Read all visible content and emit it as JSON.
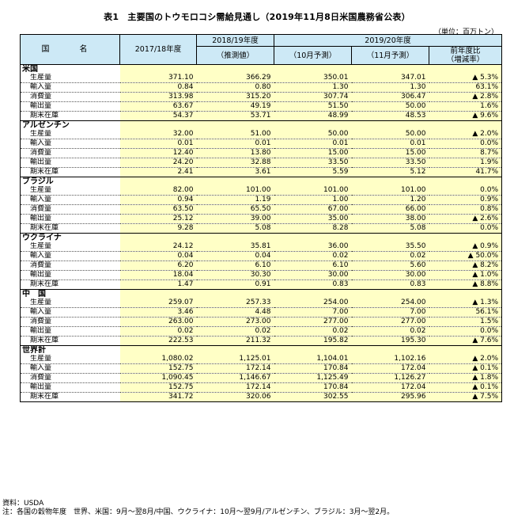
{
  "title": "表1　主要国のトウモロコシ需給見通し（2019年11月8日米国農務省公表）",
  "unit": "（単位：百万トン）",
  "header": {
    "country_col": "国　名",
    "col_2017": "2017/18年度",
    "group_2018": "2018/19年度",
    "group_2019": "2019/20年度",
    "estimate": "（推測値）",
    "oct_forecast": "（10月予測）",
    "nov_forecast": "（11月予測）",
    "yoy_line1": "前年度比",
    "yoy_line2": "（増減率）"
  },
  "groups": [
    {
      "name": "米国",
      "rows": [
        {
          "label": "生産量",
          "v2017": "371.10",
          "v2018": "366.29",
          "oct": "350.01",
          "nov": "347.01",
          "yoy": "▲ 5.3%"
        },
        {
          "label": "輸入量",
          "v2017": "0.84",
          "v2018": "0.80",
          "oct": "1.30",
          "nov": "1.30",
          "yoy": "63.1%"
        },
        {
          "label": "消費量",
          "v2017": "313.98",
          "v2018": "315.20",
          "oct": "307.74",
          "nov": "306.47",
          "yoy": "▲ 2.8%"
        },
        {
          "label": "輸出量",
          "v2017": "63.67",
          "v2018": "49.19",
          "oct": "51.50",
          "nov": "50.00",
          "yoy": "1.6%"
        },
        {
          "label": "期末在庫",
          "v2017": "54.37",
          "v2018": "53.71",
          "oct": "48.99",
          "nov": "48.53",
          "yoy": "▲ 9.6%"
        }
      ]
    },
    {
      "name": "アルゼンチン",
      "rows": [
        {
          "label": "生産量",
          "v2017": "32.00",
          "v2018": "51.00",
          "oct": "50.00",
          "nov": "50.00",
          "yoy": "▲ 2.0%"
        },
        {
          "label": "輸入量",
          "v2017": "0.01",
          "v2018": "0.01",
          "oct": "0.01",
          "nov": "0.01",
          "yoy": "0.0%"
        },
        {
          "label": "消費量",
          "v2017": "12.40",
          "v2018": "13.80",
          "oct": "15.00",
          "nov": "15.00",
          "yoy": "8.7%"
        },
        {
          "label": "輸出量",
          "v2017": "24.20",
          "v2018": "32.88",
          "oct": "33.50",
          "nov": "33.50",
          "yoy": "1.9%"
        },
        {
          "label": "期末在庫",
          "v2017": "2.41",
          "v2018": "3.61",
          "oct": "5.59",
          "nov": "5.12",
          "yoy": "41.7%"
        }
      ]
    },
    {
      "name": "ブラジル",
      "rows": [
        {
          "label": "生産量",
          "v2017": "82.00",
          "v2018": "101.00",
          "oct": "101.00",
          "nov": "101.00",
          "yoy": "0.0%"
        },
        {
          "label": "輸入量",
          "v2017": "0.94",
          "v2018": "1.19",
          "oct": "1.00",
          "nov": "1.20",
          "yoy": "0.9%"
        },
        {
          "label": "消費量",
          "v2017": "63.50",
          "v2018": "65.50",
          "oct": "67.00",
          "nov": "66.00",
          "yoy": "0.8%"
        },
        {
          "label": "輸出量",
          "v2017": "25.12",
          "v2018": "39.00",
          "oct": "35.00",
          "nov": "38.00",
          "yoy": "▲ 2.6%"
        },
        {
          "label": "期末在庫",
          "v2017": "9.28",
          "v2018": "5.08",
          "oct": "8.28",
          "nov": "5.08",
          "yoy": "0.0%"
        }
      ]
    },
    {
      "name": "ウクライナ",
      "rows": [
        {
          "label": "生産量",
          "v2017": "24.12",
          "v2018": "35.81",
          "oct": "36.00",
          "nov": "35.50",
          "yoy": "▲ 0.9%"
        },
        {
          "label": "輸入量",
          "v2017": "0.04",
          "v2018": "0.04",
          "oct": "0.02",
          "nov": "0.02",
          "yoy": "▲ 50.0%"
        },
        {
          "label": "消費量",
          "v2017": "6.20",
          "v2018": "6.10",
          "oct": "6.10",
          "nov": "5.60",
          "yoy": "▲ 8.2%"
        },
        {
          "label": "輸出量",
          "v2017": "18.04",
          "v2018": "30.30",
          "oct": "30.00",
          "nov": "30.00",
          "yoy": "▲ 1.0%"
        },
        {
          "label": "期末在庫",
          "v2017": "1.47",
          "v2018": "0.91",
          "oct": "0.83",
          "nov": "0.83",
          "yoy": "▲ 8.8%"
        }
      ]
    },
    {
      "name": "中　国",
      "rows": [
        {
          "label": "生産量",
          "v2017": "259.07",
          "v2018": "257.33",
          "oct": "254.00",
          "nov": "254.00",
          "yoy": "▲ 1.3%"
        },
        {
          "label": "輸入量",
          "v2017": "3.46",
          "v2018": "4.48",
          "oct": "7.00",
          "nov": "7.00",
          "yoy": "56.1%"
        },
        {
          "label": "消費量",
          "v2017": "263.00",
          "v2018": "273.00",
          "oct": "277.00",
          "nov": "277.00",
          "yoy": "1.5%"
        },
        {
          "label": "輸出量",
          "v2017": "0.02",
          "v2018": "0.02",
          "oct": "0.02",
          "nov": "0.02",
          "yoy": "0.0%"
        },
        {
          "label": "期末在庫",
          "v2017": "222.53",
          "v2018": "211.32",
          "oct": "195.82",
          "nov": "195.30",
          "yoy": "▲ 7.6%"
        }
      ]
    },
    {
      "name": "世界計",
      "rows": [
        {
          "label": "生産量",
          "v2017": "1,080.02",
          "v2018": "1,125.01",
          "oct": "1,104.01",
          "nov": "1,102.16",
          "yoy": "▲ 2.0%"
        },
        {
          "label": "輸入量",
          "v2017": "152.75",
          "v2018": "172.14",
          "oct": "170.84",
          "nov": "172.04",
          "yoy": "▲ 0.1%"
        },
        {
          "label": "消費量",
          "v2017": "1,090.45",
          "v2018": "1,146.67",
          "oct": "1,125.49",
          "nov": "1,126.27",
          "yoy": "▲ 1.8%"
        },
        {
          "label": "輸出量",
          "v2017": "152.75",
          "v2018": "172.14",
          "oct": "170.84",
          "nov": "172.04",
          "yoy": "▲ 0.1%"
        },
        {
          "label": "期末在庫",
          "v2017": "341.72",
          "v2018": "320.06",
          "oct": "302.55",
          "nov": "295.96",
          "yoy": "▲ 7.5%"
        }
      ]
    }
  ],
  "source": "資料：USDA",
  "note": "注：各国の穀物年度　世界、米国：9月～翌8月/中国、ウクライナ：10月～翌9月/アルゼンチン、ブラジル：3月～翌2月。"
}
